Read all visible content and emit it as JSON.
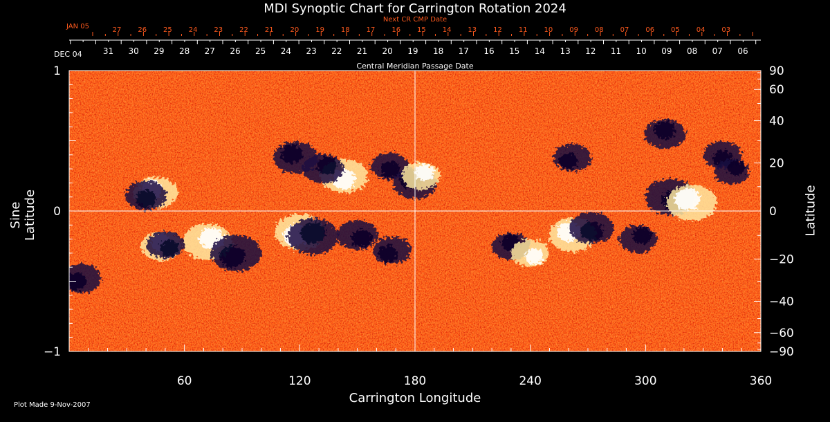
{
  "title": "MDI Synoptic Chart for Carrington Rotation 2024",
  "next_cr_label": "Next CR CMP Date",
  "cmp_label": "Central Meridian Passage Date",
  "plot_made": "Plot Made  9-Nov-2007",
  "colors": {
    "background": "#000000",
    "map_base": "#ff5a14",
    "top_axis_red": "#ff5a1e",
    "axis_white": "#ffffff"
  },
  "chart_data": {
    "type": "heatmap",
    "title": "MDI Synoptic Chart for Carrington Rotation 2024",
    "xlabel": "Carrington Longitude",
    "ylabel_left": "Sine Latitude",
    "ylabel_right": "Latitude",
    "xlim": [
      0,
      360
    ],
    "ylim": [
      -1,
      1
    ],
    "x_ticks": [
      60,
      120,
      180,
      240,
      300,
      360
    ],
    "y_left_ticks": [
      {
        "value": 1,
        "label": "1"
      },
      {
        "value": 0,
        "label": "0"
      },
      {
        "value": -1,
        "label": "−1"
      }
    ],
    "y_right_ticks": [
      90,
      60,
      40,
      20,
      0,
      -20,
      -40,
      -60,
      -90
    ],
    "y_right_tick_labels": [
      "90",
      "60",
      "40",
      "20",
      "0",
      "−20",
      "−40",
      "−60",
      "−90"
    ],
    "grid_lines": {
      "longitude": 180,
      "sine_latitude": 0
    },
    "cmp_dates": {
      "first_label": "DEC 04",
      "days": [
        "31",
        "30",
        "29",
        "28",
        "27",
        "26",
        "25",
        "24",
        "23",
        "22",
        "21",
        "20",
        "19",
        "18",
        "17",
        "16",
        "15",
        "14",
        "13",
        "12",
        "11",
        "10",
        "09",
        "08",
        "07",
        "06"
      ]
    },
    "next_cr_dates": {
      "first_label": "JAN 05",
      "days": [
        "27",
        "26",
        "25",
        "24",
        "23",
        "22",
        "21",
        "20",
        "19",
        "18",
        "17",
        "16",
        "15",
        "14",
        "13",
        "12",
        "11",
        "10",
        "09",
        "08",
        "07",
        "06",
        "05",
        "04",
        "03"
      ]
    },
    "regions": [
      {
        "polarity": "positive",
        "lon": 45,
        "lat": 0.13,
        "strength": 0.8
      },
      {
        "polarity": "negative",
        "lon": 40,
        "lat": 0.11,
        "strength": 0.7
      },
      {
        "polarity": "positive",
        "lon": 72,
        "lat": -0.22,
        "strength": 1.0
      },
      {
        "polarity": "negative",
        "lon": 87,
        "lat": -0.3,
        "strength": 1.0
      },
      {
        "polarity": "positive",
        "lon": 48,
        "lat": -0.25,
        "strength": 0.7
      },
      {
        "polarity": "negative",
        "lon": 50,
        "lat": -0.24,
        "strength": 0.6
      },
      {
        "polarity": "negative",
        "lon": 118,
        "lat": 0.38,
        "strength": 0.8
      },
      {
        "polarity": "positive",
        "lon": 143,
        "lat": 0.25,
        "strength": 0.9
      },
      {
        "polarity": "negative",
        "lon": 132,
        "lat": 0.3,
        "strength": 0.7
      },
      {
        "polarity": "positive",
        "lon": 120,
        "lat": -0.15,
        "strength": 1.0
      },
      {
        "polarity": "negative",
        "lon": 127,
        "lat": -0.18,
        "strength": 1.0
      },
      {
        "polarity": "negative",
        "lon": 150,
        "lat": -0.17,
        "strength": 0.7
      },
      {
        "polarity": "negative",
        "lon": 180,
        "lat": 0.2,
        "strength": 0.8
      },
      {
        "polarity": "negative",
        "lon": 167,
        "lat": 0.32,
        "strength": 0.6
      },
      {
        "polarity": "positive",
        "lon": 183,
        "lat": 0.25,
        "strength": 0.6
      },
      {
        "polarity": "negative",
        "lon": 168,
        "lat": -0.28,
        "strength": 0.6
      },
      {
        "polarity": "negative",
        "lon": 230,
        "lat": -0.25,
        "strength": 0.6
      },
      {
        "polarity": "positive",
        "lon": 240,
        "lat": -0.3,
        "strength": 0.6
      },
      {
        "polarity": "positive",
        "lon": 262,
        "lat": -0.17,
        "strength": 0.9
      },
      {
        "polarity": "negative",
        "lon": 272,
        "lat": -0.12,
        "strength": 0.8
      },
      {
        "polarity": "negative",
        "lon": 296,
        "lat": -0.2,
        "strength": 0.6
      },
      {
        "polarity": "negative",
        "lon": 262,
        "lat": 0.38,
        "strength": 0.6
      },
      {
        "polarity": "negative",
        "lon": 310,
        "lat": 0.55,
        "strength": 0.7
      },
      {
        "polarity": "negative",
        "lon": 313,
        "lat": 0.1,
        "strength": 1.0
      },
      {
        "polarity": "positive",
        "lon": 324,
        "lat": 0.06,
        "strength": 1.0
      },
      {
        "polarity": "negative",
        "lon": 340,
        "lat": 0.4,
        "strength": 0.6
      },
      {
        "polarity": "negative",
        "lon": 345,
        "lat": 0.28,
        "strength": 0.5
      },
      {
        "polarity": "negative",
        "lon": 6,
        "lat": -0.48,
        "strength": 0.7
      }
    ]
  }
}
